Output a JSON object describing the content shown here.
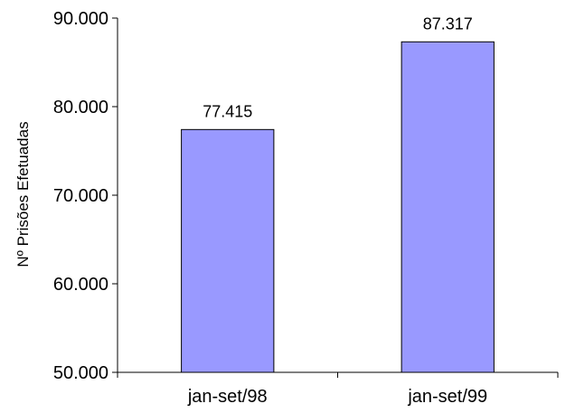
{
  "chart_data": {
    "type": "bar",
    "title": "",
    "xlabel": "",
    "ylabel": "Nº Prisões Efetuadas",
    "categories": [
      "jan-set/98",
      "jan-set/99"
    ],
    "values": [
      77415,
      87317
    ],
    "data_labels": [
      "77.415",
      "87.317"
    ],
    "ylim": [
      50000,
      90000
    ],
    "yticks": [
      50000,
      60000,
      70000,
      80000,
      90000
    ],
    "ytick_labels": [
      "50.000",
      "60.000",
      "70.000",
      "80.000",
      "90.000"
    ],
    "grid": false,
    "legend": "none",
    "bar_color": "#9999ff",
    "bar_edge_color": "#000000"
  }
}
